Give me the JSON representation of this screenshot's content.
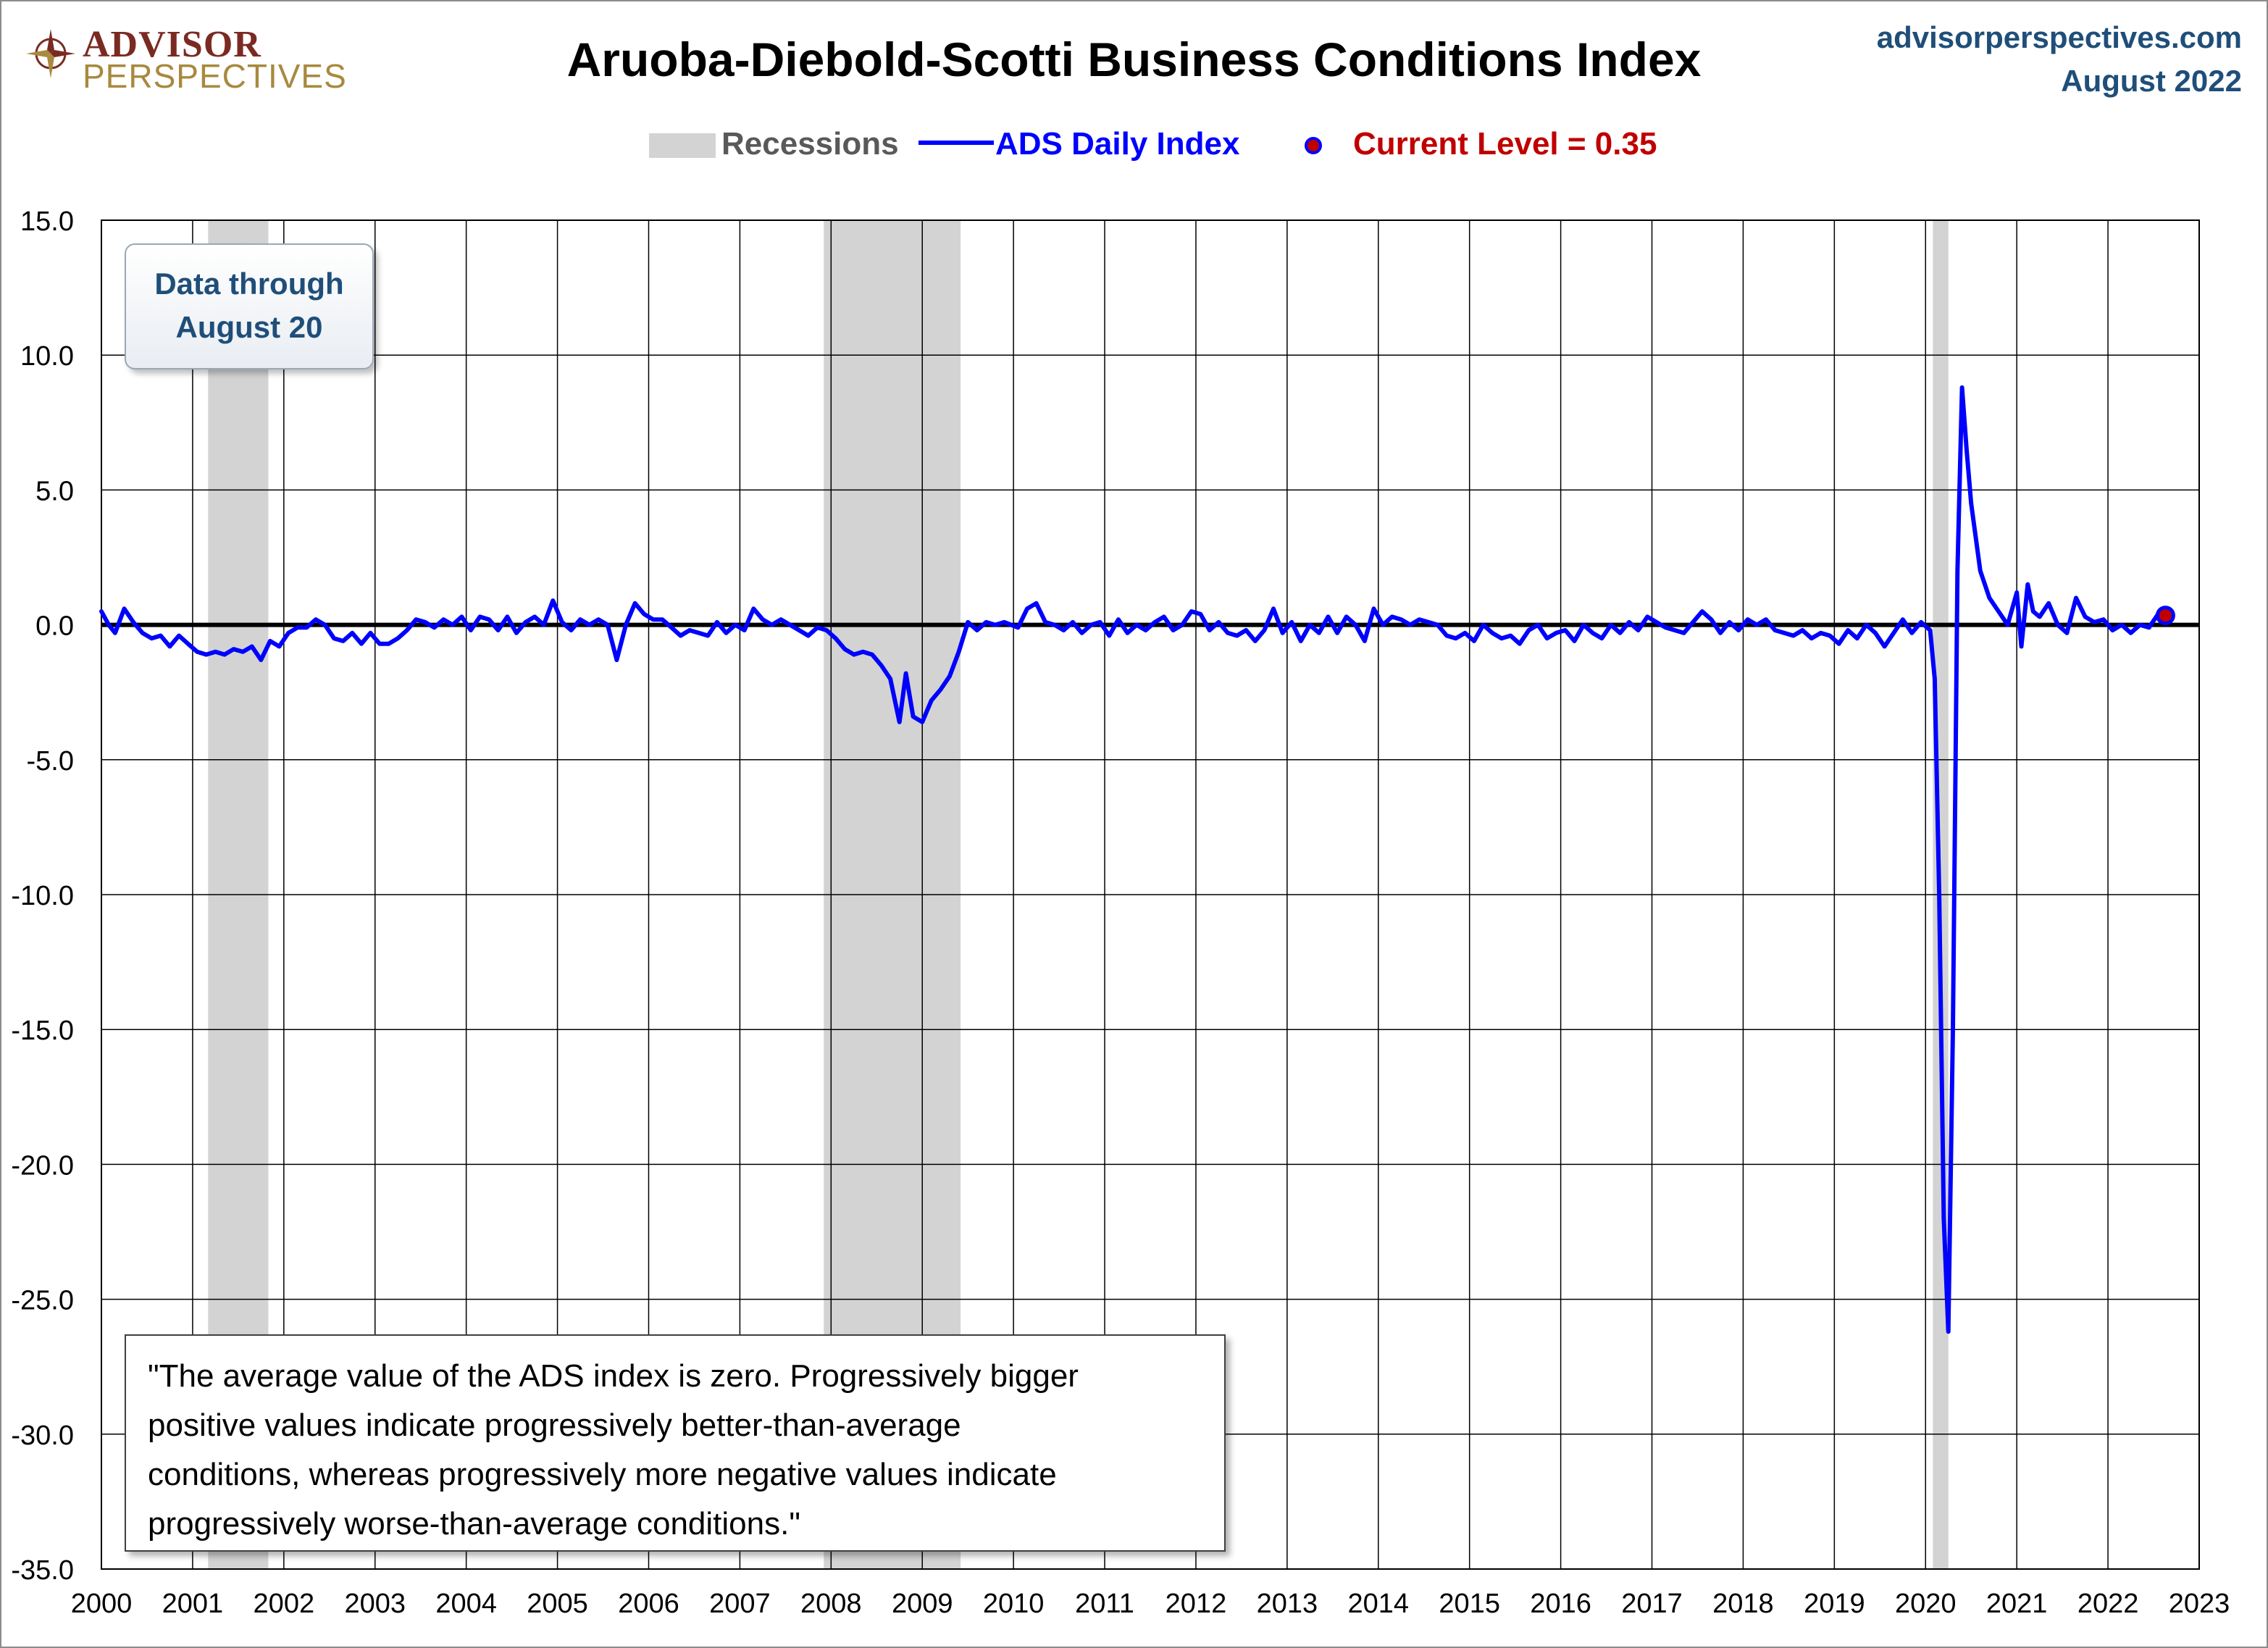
{
  "brand": {
    "name_top": "ADVISOR",
    "name_bottom": "PERSPECTIVES",
    "icon": "compass-rose-icon"
  },
  "site": {
    "url": "advisorperspectives.com",
    "date": "August 2022"
  },
  "legend": {
    "recessions": "Recessions",
    "series": "ADS Daily Index",
    "current": "Current Level =  0.35"
  },
  "callout": {
    "line1": "Data through",
    "line2": "August 20"
  },
  "quote": "\"The average value of the ADS index is zero. Progressively bigger\npositive values indicate progressively better-than-average\nconditions, whereas progressively more negative values indicate\nprogressively worse-than-average conditions.\"",
  "colors": {
    "series": "#0000ff",
    "current": "#c00000",
    "recession": "#d3d3d3",
    "title": "#000000",
    "accent": "#1f4e79"
  },
  "chart_data": {
    "type": "line",
    "title": "Aruoba-Diebold-Scotti Business Conditions Index",
    "xlabel": "",
    "ylabel": "",
    "xlim": [
      2000,
      2023
    ],
    "ylim": [
      -35,
      15
    ],
    "yticks": [
      "15.0",
      "10.0",
      "5.0",
      "0.0",
      "-5.0",
      "-10.0",
      "-15.0",
      "-20.0",
      "-25.0",
      "-30.0",
      "-35.0"
    ],
    "xticks": [
      "2000",
      "2001",
      "2002",
      "2003",
      "2004",
      "2005",
      "2006",
      "2007",
      "2008",
      "2009",
      "2010",
      "2011",
      "2012",
      "2013",
      "2014",
      "2015",
      "2016",
      "2017",
      "2018",
      "2019",
      "2020",
      "2021",
      "2022",
      "2023"
    ],
    "grid": true,
    "legend_position": "top",
    "recessions": [
      [
        2001.17,
        2001.83
      ],
      [
        2007.92,
        2009.42
      ],
      [
        2020.08,
        2020.25
      ]
    ],
    "current": {
      "x": 2022.63,
      "y": 0.35
    },
    "series": [
      {
        "name": "ADS Daily Index",
        "points": [
          [
            2000.0,
            0.5
          ],
          [
            2000.08,
            0.0
          ],
          [
            2000.15,
            -0.3
          ],
          [
            2000.25,
            0.6
          ],
          [
            2000.35,
            0.1
          ],
          [
            2000.45,
            -0.3
          ],
          [
            2000.55,
            -0.5
          ],
          [
            2000.65,
            -0.4
          ],
          [
            2000.75,
            -0.8
          ],
          [
            2000.85,
            -0.4
          ],
          [
            2000.95,
            -0.7
          ],
          [
            2001.05,
            -1.0
          ],
          [
            2001.15,
            -1.1
          ],
          [
            2001.25,
            -1.0
          ],
          [
            2001.35,
            -1.1
          ],
          [
            2001.45,
            -0.9
          ],
          [
            2001.55,
            -1.0
          ],
          [
            2001.65,
            -0.8
          ],
          [
            2001.75,
            -1.3
          ],
          [
            2001.85,
            -0.6
          ],
          [
            2001.95,
            -0.8
          ],
          [
            2002.05,
            -0.3
          ],
          [
            2002.15,
            -0.1
          ],
          [
            2002.25,
            -0.1
          ],
          [
            2002.35,
            0.2
          ],
          [
            2002.45,
            0.0
          ],
          [
            2002.55,
            -0.5
          ],
          [
            2002.65,
            -0.6
          ],
          [
            2002.75,
            -0.3
          ],
          [
            2002.85,
            -0.7
          ],
          [
            2002.95,
            -0.3
          ],
          [
            2003.05,
            -0.7
          ],
          [
            2003.15,
            -0.7
          ],
          [
            2003.25,
            -0.5
          ],
          [
            2003.35,
            -0.2
          ],
          [
            2003.45,
            0.2
          ],
          [
            2003.55,
            0.1
          ],
          [
            2003.65,
            -0.1
          ],
          [
            2003.75,
            0.2
          ],
          [
            2003.85,
            0.0
          ],
          [
            2003.95,
            0.3
          ],
          [
            2004.05,
            -0.2
          ],
          [
            2004.15,
            0.3
          ],
          [
            2004.25,
            0.2
          ],
          [
            2004.35,
            -0.2
          ],
          [
            2004.45,
            0.3
          ],
          [
            2004.55,
            -0.3
          ],
          [
            2004.65,
            0.1
          ],
          [
            2004.75,
            0.3
          ],
          [
            2004.85,
            0.0
          ],
          [
            2004.95,
            0.9
          ],
          [
            2005.05,
            0.1
          ],
          [
            2005.15,
            -0.2
          ],
          [
            2005.25,
            0.2
          ],
          [
            2005.35,
            0.0
          ],
          [
            2005.45,
            0.2
          ],
          [
            2005.55,
            0.0
          ],
          [
            2005.65,
            -1.3
          ],
          [
            2005.75,
            0.0
          ],
          [
            2005.85,
            0.8
          ],
          [
            2005.95,
            0.4
          ],
          [
            2006.05,
            0.2
          ],
          [
            2006.15,
            0.2
          ],
          [
            2006.25,
            -0.1
          ],
          [
            2006.35,
            -0.4
          ],
          [
            2006.45,
            -0.2
          ],
          [
            2006.55,
            -0.3
          ],
          [
            2006.65,
            -0.4
          ],
          [
            2006.75,
            0.1
          ],
          [
            2006.85,
            -0.3
          ],
          [
            2006.95,
            0.0
          ],
          [
            2007.05,
            -0.2
          ],
          [
            2007.15,
            0.6
          ],
          [
            2007.25,
            0.2
          ],
          [
            2007.35,
            0.0
          ],
          [
            2007.45,
            0.2
          ],
          [
            2007.55,
            0.0
          ],
          [
            2007.65,
            -0.2
          ],
          [
            2007.75,
            -0.4
          ],
          [
            2007.85,
            -0.1
          ],
          [
            2007.95,
            -0.2
          ],
          [
            2008.05,
            -0.5
          ],
          [
            2008.15,
            -0.9
          ],
          [
            2008.25,
            -1.1
          ],
          [
            2008.35,
            -1.0
          ],
          [
            2008.45,
            -1.1
          ],
          [
            2008.55,
            -1.5
          ],
          [
            2008.65,
            -2.0
          ],
          [
            2008.75,
            -3.6
          ],
          [
            2008.82,
            -1.8
          ],
          [
            2008.9,
            -3.4
          ],
          [
            2009.0,
            -3.6
          ],
          [
            2009.1,
            -2.8
          ],
          [
            2009.2,
            -2.4
          ],
          [
            2009.3,
            -1.9
          ],
          [
            2009.4,
            -1.0
          ],
          [
            2009.5,
            0.1
          ],
          [
            2009.6,
            -0.2
          ],
          [
            2009.7,
            0.1
          ],
          [
            2009.8,
            0.0
          ],
          [
            2009.9,
            0.1
          ],
          [
            2010.05,
            -0.1
          ],
          [
            2010.15,
            0.6
          ],
          [
            2010.25,
            0.8
          ],
          [
            2010.35,
            0.1
          ],
          [
            2010.45,
            0.0
          ],
          [
            2010.55,
            -0.2
          ],
          [
            2010.65,
            0.1
          ],
          [
            2010.75,
            -0.3
          ],
          [
            2010.85,
            0.0
          ],
          [
            2010.95,
            0.1
          ],
          [
            2011.05,
            -0.4
          ],
          [
            2011.15,
            0.2
          ],
          [
            2011.25,
            -0.3
          ],
          [
            2011.35,
            0.0
          ],
          [
            2011.45,
            -0.2
          ],
          [
            2011.55,
            0.1
          ],
          [
            2011.65,
            0.3
          ],
          [
            2011.75,
            -0.2
          ],
          [
            2011.85,
            0.0
          ],
          [
            2011.95,
            0.5
          ],
          [
            2012.05,
            0.4
          ],
          [
            2012.15,
            -0.2
          ],
          [
            2012.25,
            0.1
          ],
          [
            2012.35,
            -0.3
          ],
          [
            2012.45,
            -0.4
          ],
          [
            2012.55,
            -0.2
          ],
          [
            2012.65,
            -0.6
          ],
          [
            2012.75,
            -0.2
          ],
          [
            2012.85,
            0.6
          ],
          [
            2012.95,
            -0.3
          ],
          [
            2013.05,
            0.1
          ],
          [
            2013.15,
            -0.6
          ],
          [
            2013.25,
            0.0
          ],
          [
            2013.35,
            -0.3
          ],
          [
            2013.45,
            0.3
          ],
          [
            2013.55,
            -0.3
          ],
          [
            2013.65,
            0.3
          ],
          [
            2013.75,
            0.0
          ],
          [
            2013.85,
            -0.6
          ],
          [
            2013.95,
            0.6
          ],
          [
            2014.05,
            0.0
          ],
          [
            2014.15,
            0.3
          ],
          [
            2014.25,
            0.2
          ],
          [
            2014.35,
            0.0
          ],
          [
            2014.45,
            0.2
          ],
          [
            2014.55,
            0.1
          ],
          [
            2014.65,
            0.0
          ],
          [
            2014.75,
            -0.4
          ],
          [
            2014.85,
            -0.5
          ],
          [
            2014.95,
            -0.3
          ],
          [
            2015.05,
            -0.6
          ],
          [
            2015.15,
            0.0
          ],
          [
            2015.25,
            -0.3
          ],
          [
            2015.35,
            -0.5
          ],
          [
            2015.45,
            -0.4
          ],
          [
            2015.55,
            -0.7
          ],
          [
            2015.65,
            -0.2
          ],
          [
            2015.75,
            0.0
          ],
          [
            2015.85,
            -0.5
          ],
          [
            2015.95,
            -0.3
          ],
          [
            2016.05,
            -0.2
          ],
          [
            2016.15,
            -0.6
          ],
          [
            2016.25,
            0.0
          ],
          [
            2016.35,
            -0.3
          ],
          [
            2016.45,
            -0.5
          ],
          [
            2016.55,
            0.0
          ],
          [
            2016.65,
            -0.3
          ],
          [
            2016.75,
            0.1
          ],
          [
            2016.85,
            -0.2
          ],
          [
            2016.95,
            0.3
          ],
          [
            2017.05,
            0.1
          ],
          [
            2017.15,
            -0.1
          ],
          [
            2017.25,
            -0.2
          ],
          [
            2017.35,
            -0.3
          ],
          [
            2017.45,
            0.1
          ],
          [
            2017.55,
            0.5
          ],
          [
            2017.65,
            0.2
          ],
          [
            2017.75,
            -0.3
          ],
          [
            2017.85,
            0.1
          ],
          [
            2017.95,
            -0.2
          ],
          [
            2018.05,
            0.2
          ],
          [
            2018.15,
            0.0
          ],
          [
            2018.25,
            0.2
          ],
          [
            2018.35,
            -0.2
          ],
          [
            2018.45,
            -0.3
          ],
          [
            2018.55,
            -0.4
          ],
          [
            2018.65,
            -0.2
          ],
          [
            2018.75,
            -0.5
          ],
          [
            2018.85,
            -0.3
          ],
          [
            2018.95,
            -0.4
          ],
          [
            2019.05,
            -0.7
          ],
          [
            2019.15,
            -0.2
          ],
          [
            2019.25,
            -0.5
          ],
          [
            2019.35,
            0.0
          ],
          [
            2019.45,
            -0.3
          ],
          [
            2019.55,
            -0.8
          ],
          [
            2019.65,
            -0.3
          ],
          [
            2019.75,
            0.2
          ],
          [
            2019.85,
            -0.3
          ],
          [
            2019.95,
            0.1
          ],
          [
            2020.05,
            -0.2
          ],
          [
            2020.1,
            -2.0
          ],
          [
            2020.15,
            -10.0
          ],
          [
            2020.2,
            -22.0
          ],
          [
            2020.25,
            -26.2
          ],
          [
            2020.3,
            -15.0
          ],
          [
            2020.35,
            2.0
          ],
          [
            2020.4,
            8.8
          ],
          [
            2020.45,
            6.5
          ],
          [
            2020.5,
            4.5
          ],
          [
            2020.6,
            2.0
          ],
          [
            2020.7,
            1.0
          ],
          [
            2020.8,
            0.5
          ],
          [
            2020.9,
            0.0
          ],
          [
            2021.0,
            1.2
          ],
          [
            2021.05,
            -0.8
          ],
          [
            2021.12,
            1.5
          ],
          [
            2021.18,
            0.5
          ],
          [
            2021.25,
            0.3
          ],
          [
            2021.35,
            0.8
          ],
          [
            2021.45,
            0.0
          ],
          [
            2021.55,
            -0.3
          ],
          [
            2021.65,
            1.0
          ],
          [
            2021.75,
            0.3
          ],
          [
            2021.85,
            0.1
          ],
          [
            2021.95,
            0.2
          ],
          [
            2022.05,
            -0.2
          ],
          [
            2022.15,
            0.0
          ],
          [
            2022.25,
            -0.3
          ],
          [
            2022.35,
            0.0
          ],
          [
            2022.45,
            -0.1
          ],
          [
            2022.55,
            0.4
          ],
          [
            2022.63,
            0.35
          ]
        ]
      }
    ]
  }
}
